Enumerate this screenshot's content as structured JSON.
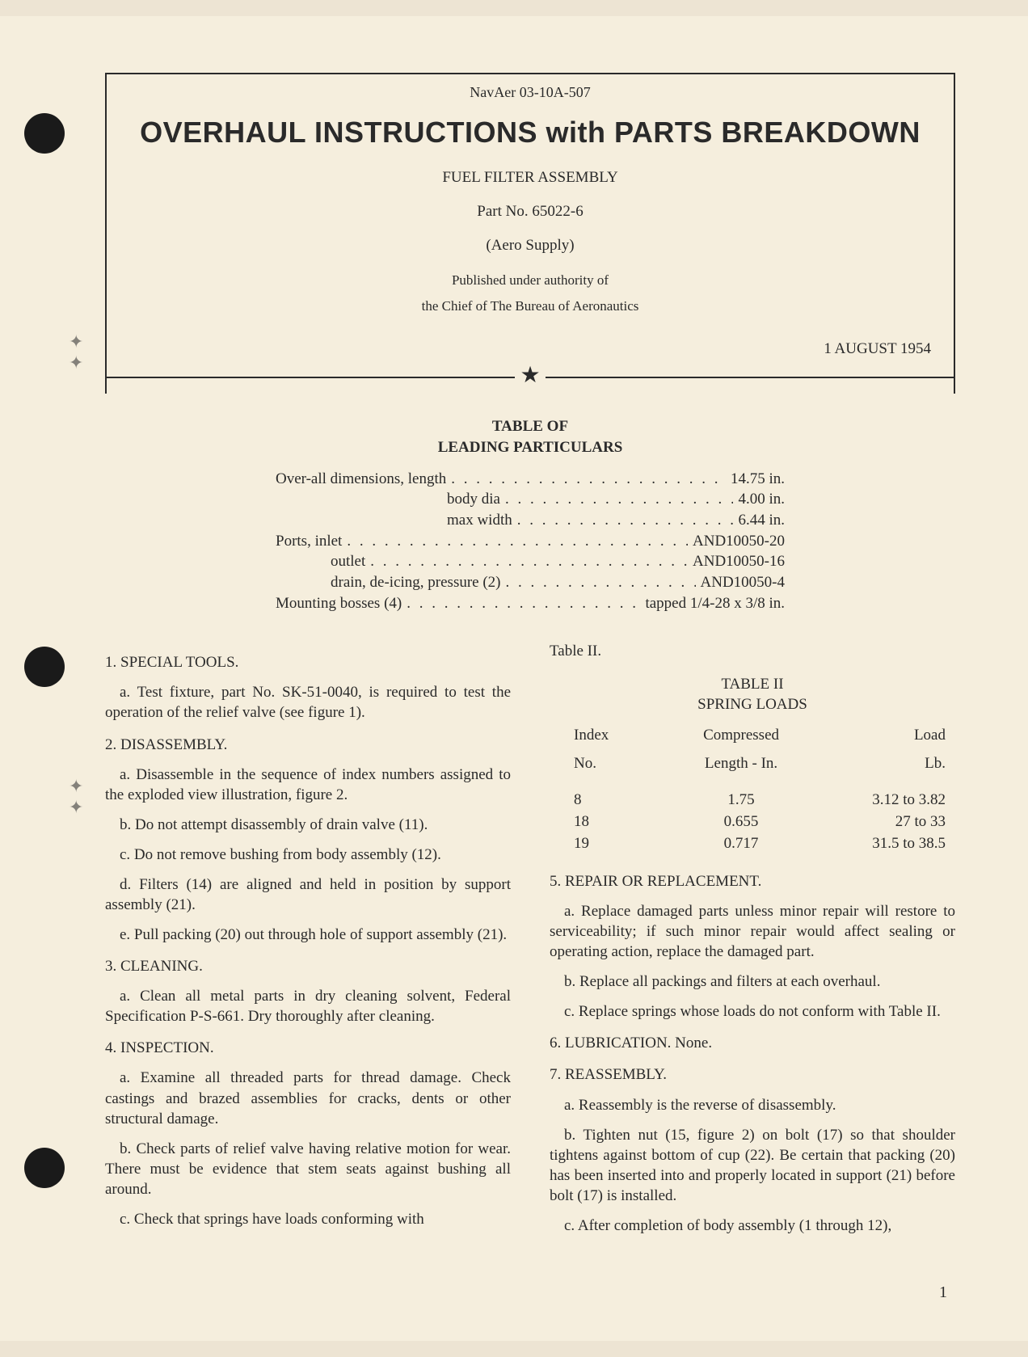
{
  "header": {
    "doc_number": "NavAer 03-10A-507",
    "main_title": "OVERHAUL INSTRUCTIONS with PARTS BREAKDOWN",
    "subtitle": "FUEL FILTER ASSEMBLY",
    "part_no": "Part No. 65022-6",
    "supplier": "(Aero Supply)",
    "authority_line1": "Published under authority of",
    "authority_line2": "the Chief of The Bureau of Aeronautics",
    "date": "1 AUGUST 1954"
  },
  "particulars_title_1": "TABLE OF",
  "particulars_title_2": "LEADING PARTICULARS",
  "particulars": [
    {
      "label": "Over-all dimensions, length",
      "value": "14.75 in."
    },
    {
      "label": "body dia",
      "value": "4.00 in.",
      "indent": 212
    },
    {
      "label": "max width",
      "value": "6.44 in.",
      "indent": 212
    },
    {
      "label": "Ports, inlet",
      "value": "AND10050-20"
    },
    {
      "label": "outlet",
      "value": "AND10050-16",
      "indent": 68
    },
    {
      "label": "drain, de-icing, pressure (2)",
      "value": "AND10050-4",
      "indent": 68
    },
    {
      "label": "Mounting bosses (4)",
      "value": "tapped 1/4-28 x 3/8 in."
    }
  ],
  "left": {
    "s1_head": "1. SPECIAL TOOLS.",
    "s1_a": "a. Test fixture, part No. SK-51-0040, is required to test the operation of the relief valve (see figure 1).",
    "s2_head": "2. DISASSEMBLY.",
    "s2_a": "a. Disassemble in the sequence of index numbers assigned to the exploded view illustration, figure 2.",
    "s2_b": "b. Do not attempt disassembly of drain valve (11).",
    "s2_c": "c. Do not remove bushing from body assembly (12).",
    "s2_d": "d. Filters (14) are aligned and held in position by support assembly (21).",
    "s2_e": "e. Pull packing (20) out through hole of support assembly (21).",
    "s3_head": "3. CLEANING.",
    "s3_a": "a. Clean all metal parts in dry cleaning solvent, Federal Specification P-S-661. Dry thoroughly after cleaning.",
    "s4_head": "4. INSPECTION.",
    "s4_a": "a. Examine all threaded parts for thread damage. Check castings and brazed assemblies for cracks, dents or other structural damage.",
    "s4_b": "b. Check parts of relief valve having relative motion for wear. There must be evidence that stem seats against bushing all around.",
    "s4_c": "c. Check that springs have loads conforming with"
  },
  "right": {
    "top_ref": "Table II.",
    "table2_title1": "TABLE II",
    "table2_title2": "SPRING LOADS",
    "table2_headers": {
      "c1a": "Index",
      "c1b": "No.",
      "c2a": "Compressed",
      "c2b": "Length - In.",
      "c3a": "Load",
      "c3b": "Lb."
    },
    "table2_rows": [
      {
        "idx": "8",
        "len": "1.75",
        "load": "3.12 to 3.82"
      },
      {
        "idx": "18",
        "len": "0.655",
        "load": "27 to 33"
      },
      {
        "idx": "19",
        "len": "0.717",
        "load": "31.5 to 38.5"
      }
    ],
    "s5_head": "5. REPAIR OR REPLACEMENT.",
    "s5_a": "a. Replace damaged parts unless minor repair will restore to serviceability; if such minor repair would affect sealing or operating action, replace the damaged part.",
    "s5_b": "b. Replace all packings and filters at each overhaul.",
    "s5_c": "c. Replace springs whose loads do not conform with Table II.",
    "s6_head": "6. LUBRICATION. None.",
    "s7_head": "7. REASSEMBLY.",
    "s7_a": "a. Reassembly is the reverse of disassembly.",
    "s7_b": "b. Tighten nut (15, figure 2) on bolt (17) so that shoulder tightens against bottom of cup (22). Be certain that packing (20) has been inserted into and properly located in support (21) before bolt (17) is installed.",
    "s7_c": "c. After completion of body assembly (1 through 12),"
  },
  "page_number": "1"
}
